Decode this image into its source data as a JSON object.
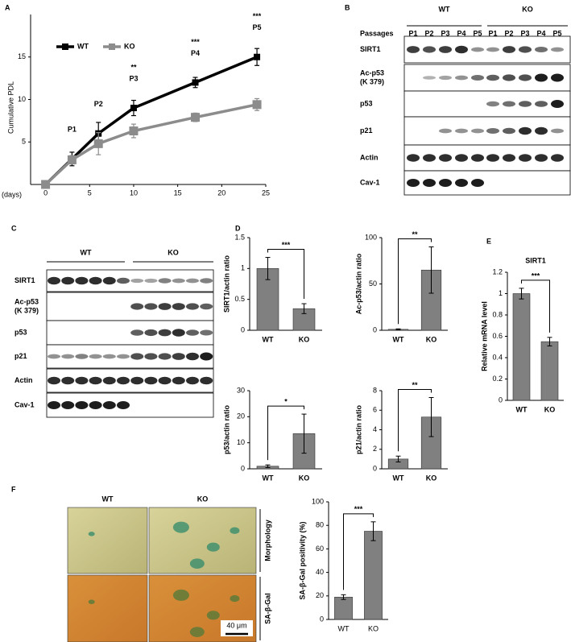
{
  "figure": {
    "panel_labels": [
      "A",
      "B",
      "C",
      "D",
      "E",
      "F"
    ]
  },
  "chart_data": [
    {
      "type": "line",
      "x_label": "(days)",
      "y_label": "Cumulative PDL",
      "x": [
        0,
        3,
        6,
        10,
        17,
        24
      ],
      "series": [
        {
          "name": "WT",
          "color": "#000000",
          "values": [
            0,
            3,
            6,
            9,
            12,
            15
          ],
          "errors": [
            0,
            0.8,
            1.3,
            0.9,
            0.6,
            1.0
          ]
        },
        {
          "name": "KO",
          "color": "#8c8c8c",
          "values": [
            0,
            2.9,
            4.8,
            6.3,
            7.9,
            9.4
          ],
          "errors": [
            0,
            0.5,
            1.3,
            0.8,
            0.5,
            0.7
          ]
        }
      ],
      "point_labels": [
        null,
        "P1",
        "P2",
        "P3",
        "P4",
        "P5"
      ],
      "significance": [
        null,
        null,
        null,
        "**",
        "***",
        "***"
      ],
      "xlim": [
        -1.7,
        25
      ],
      "xticks": [
        0,
        5,
        10,
        15,
        20,
        25
      ],
      "ylim": [
        0,
        20
      ],
      "yticks": [
        5,
        10,
        15
      ],
      "legend": "upper left"
    },
    {
      "type": "bar",
      "y_label": "SIRT1/actin ratio",
      "categories": [
        "WT",
        "KO"
      ],
      "values": [
        1,
        0.35
      ],
      "errors": [
        0.18,
        0.08
      ],
      "color": "#808080",
      "significance": "***",
      "ylim": [
        0,
        1.5
      ],
      "yticks": [
        0,
        0.5,
        1,
        1.5
      ]
    },
    {
      "type": "bar",
      "y_label": "Ac-p53/actin ratio",
      "categories": [
        "WT",
        "KO"
      ],
      "values": [
        1,
        65
      ],
      "errors": [
        0.5,
        25
      ],
      "color": "#808080",
      "significance": "**",
      "ylim": [
        0,
        100
      ],
      "yticks": [
        0,
        50,
        100
      ]
    },
    {
      "type": "bar",
      "y_label": "p53/actin ratio",
      "categories": [
        "WT",
        "KO"
      ],
      "values": [
        1,
        13.5
      ],
      "errors": [
        0.5,
        7.5
      ],
      "color": "#808080",
      "significance": "*",
      "ylim": [
        0,
        30
      ],
      "yticks": [
        0,
        10,
        20,
        30
      ]
    },
    {
      "type": "bar",
      "y_label": "p21/actin ratio",
      "categories": [
        "WT",
        "KO"
      ],
      "values": [
        1,
        5.3
      ],
      "errors": [
        0.3,
        2
      ],
      "color": "#808080",
      "significance": "**",
      "ylim": [
        0,
        8
      ],
      "yticks": [
        0,
        2,
        4,
        6,
        8
      ]
    },
    {
      "type": "bar",
      "title": "SIRT1",
      "y_label": "Relative mRNA level",
      "categories": [
        "WT",
        "KO"
      ],
      "values": [
        1,
        0.55
      ],
      "errors": [
        0.05,
        0.04
      ],
      "color": "#808080",
      "significance": "***",
      "ylim": [
        0,
        1.2
      ],
      "yticks": [
        0,
        0.2,
        0.4,
        0.6,
        0.8,
        1,
        1.2
      ]
    },
    {
      "type": "bar",
      "y_label": "SA-β-Gal positivity (%)",
      "categories": [
        "WT",
        "KO"
      ],
      "values": [
        19,
        75
      ],
      "errors": [
        2,
        8
      ],
      "color": "#808080",
      "significance": "***",
      "ylim": [
        0,
        100
      ],
      "yticks": [
        0,
        20,
        40,
        60,
        80,
        100
      ]
    }
  ],
  "blots": {
    "B": {
      "header": "Passages",
      "groups": [
        "WT",
        "KO"
      ],
      "lanes": [
        "P1",
        "P2",
        "P3",
        "P4",
        "P5",
        "P1",
        "P2",
        "P3",
        "P4",
        "P5"
      ],
      "rows": [
        [
          "SIRT1"
        ],
        [
          "Ac-p53",
          "(K 379)"
        ],
        [
          "p53"
        ],
        [
          "p21"
        ],
        [
          "Actin"
        ],
        [
          "Cav-1"
        ]
      ]
    },
    "C": {
      "groups": [
        "WT",
        "KO"
      ],
      "rows": [
        [
          "SIRT1"
        ],
        [
          "Ac-p53",
          "(K 379)"
        ],
        [
          "p53"
        ],
        [
          "p21"
        ],
        [
          "Actin"
        ],
        [
          "Cav-1"
        ]
      ]
    }
  },
  "micrographs": {
    "columns": [
      "WT",
      "KO"
    ],
    "rows": [
      "Morphology",
      "SA-β-Gal"
    ],
    "scale_bar": "40 μm"
  }
}
